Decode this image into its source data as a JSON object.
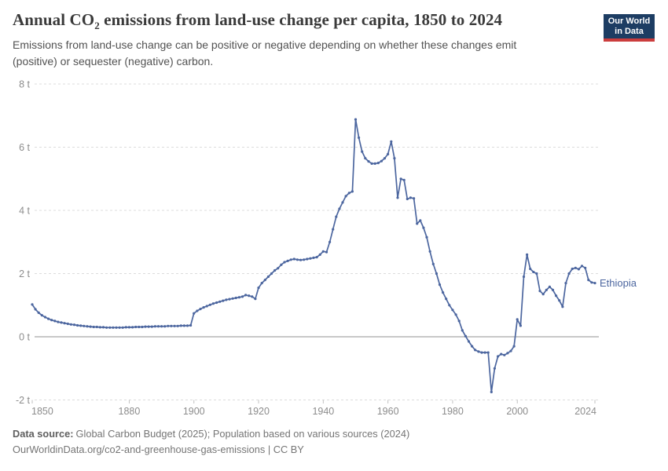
{
  "header": {
    "title_pre": "Annual CO",
    "title_sub": "2",
    "title_post": " emissions from land-use change per capita, 1850 to 2024",
    "subtitle_line1": "Emissions from land-use change can be positive or negative depending on whether these changes emit",
    "subtitle_line2": "(positive) or sequester (negative) carbon."
  },
  "logo": {
    "line1": "Our World",
    "line2": "in Data",
    "bg_color": "#1d3d63",
    "bar_color": "#cb3d3d"
  },
  "chart_data": {
    "type": "line",
    "title": "Annual CO2 emissions from land-use change per capita, 1850 to 2024",
    "unit": "t",
    "xlim": [
      1850,
      2024
    ],
    "ylim": [
      -2,
      8
    ],
    "grid": true,
    "legend_position": "end-of-line",
    "x_ticks": [
      1850,
      1880,
      1900,
      1920,
      1940,
      1960,
      1980,
      2000,
      2024
    ],
    "y_ticks": [
      {
        "value": 8,
        "label": "8 t"
      },
      {
        "value": 6,
        "label": "6 t"
      },
      {
        "value": 4,
        "label": "4 t"
      },
      {
        "value": 2,
        "label": "2 t"
      },
      {
        "value": 0,
        "label": "0 t"
      },
      {
        "value": -2,
        "label": "-2 t"
      }
    ],
    "series": [
      {
        "name": "Ethiopia",
        "color": "#4c669f",
        "x_start": 1850,
        "x_step": 1,
        "values": [
          1.02,
          0.87,
          0.76,
          0.68,
          0.62,
          0.57,
          0.53,
          0.5,
          0.47,
          0.45,
          0.43,
          0.41,
          0.39,
          0.38,
          0.36,
          0.35,
          0.34,
          0.33,
          0.32,
          0.31,
          0.31,
          0.3,
          0.3,
          0.29,
          0.29,
          0.29,
          0.29,
          0.29,
          0.29,
          0.3,
          0.3,
          0.3,
          0.31,
          0.31,
          0.31,
          0.32,
          0.32,
          0.32,
          0.33,
          0.33,
          0.33,
          0.33,
          0.34,
          0.34,
          0.34,
          0.34,
          0.35,
          0.35,
          0.35,
          0.36,
          0.74,
          0.82,
          0.88,
          0.93,
          0.97,
          1.01,
          1.05,
          1.08,
          1.11,
          1.14,
          1.17,
          1.19,
          1.21,
          1.23,
          1.25,
          1.27,
          1.32,
          1.3,
          1.27,
          1.2,
          1.55,
          1.7,
          1.8,
          1.9,
          2.0,
          2.1,
          2.17,
          2.28,
          2.36,
          2.4,
          2.44,
          2.46,
          2.44,
          2.43,
          2.44,
          2.46,
          2.48,
          2.5,
          2.52,
          2.6,
          2.7,
          2.68,
          3.0,
          3.4,
          3.8,
          4.05,
          4.25,
          4.45,
          4.55,
          4.6,
          6.88,
          6.3,
          5.86,
          5.65,
          5.55,
          5.48,
          5.48,
          5.5,
          5.56,
          5.65,
          5.78,
          6.18,
          5.65,
          4.4,
          5.0,
          4.96,
          4.36,
          4.4,
          4.38,
          3.58,
          3.68,
          3.45,
          3.15,
          2.7,
          2.3,
          2.0,
          1.65,
          1.4,
          1.2,
          1.0,
          0.85,
          0.7,
          0.5,
          0.2,
          0.02,
          -0.15,
          -0.3,
          -0.42,
          -0.47,
          -0.5,
          -0.5,
          -0.5,
          -1.75,
          -1.0,
          -0.62,
          -0.55,
          -0.58,
          -0.52,
          -0.45,
          -0.3,
          0.55,
          0.35,
          1.9,
          2.6,
          2.15,
          2.05,
          2.0,
          1.45,
          1.35,
          1.48,
          1.58,
          1.48,
          1.3,
          1.15,
          0.95,
          1.7,
          2.0,
          2.15,
          2.18,
          2.14,
          2.24,
          2.18,
          1.8,
          1.72,
          1.7
        ]
      }
    ],
    "colors": {
      "gridline": "#dcdcdc",
      "zero_line": "#a6a6a6",
      "axis_label": "#8c8c8c",
      "tick": "#c2c2c2"
    }
  },
  "footer": {
    "source_label": "Data source:",
    "source_text": "Global Carbon Budget (2025); Population based on various sources (2024)",
    "license_line": "OurWorldinData.org/co2-and-greenhouse-gas-emissions | CC BY"
  }
}
